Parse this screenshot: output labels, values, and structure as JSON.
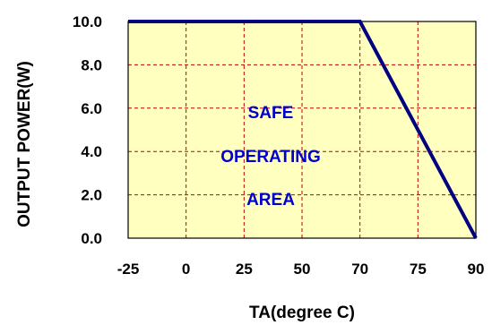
{
  "chart_data": {
    "type": "line",
    "title": "",
    "xlabel": "TA(degree C)",
    "ylabel": "OUTPUT POWER(W)",
    "categories": [
      "-25",
      "0",
      "25",
      "50",
      "70",
      "75",
      "90"
    ],
    "ylim": [
      0,
      10
    ],
    "y_ticks": [
      "0.0",
      "2.0",
      "4.0",
      "6.0",
      "8.0",
      "10.0"
    ],
    "series": [
      {
        "x": [
          "-25",
          "70",
          "90"
        ],
        "y": [
          10.0,
          10.0,
          0.0
        ]
      }
    ],
    "annotations": [
      "SAFE",
      "OPERATING",
      "AREA"
    ],
    "grid": true,
    "legend": "none",
    "colors": {
      "plot_background": "#FFFFC0",
      "line": "#000080",
      "grid": "#C00000",
      "annotation": "#0000CC"
    }
  }
}
